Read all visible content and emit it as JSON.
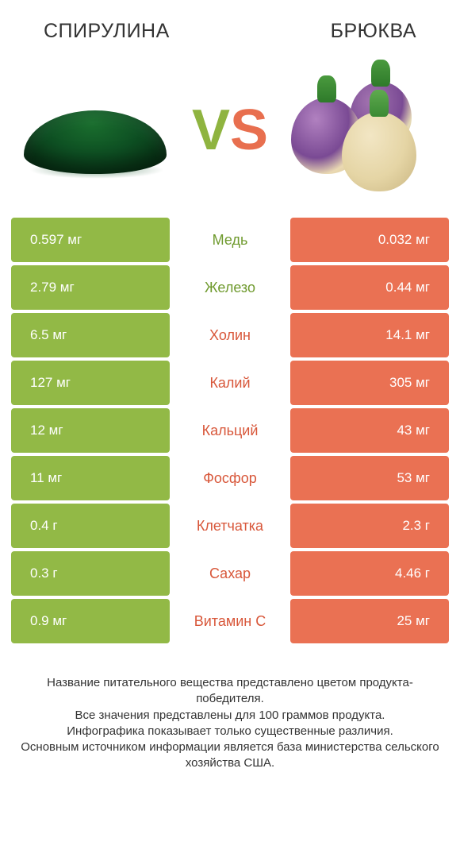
{
  "header": {
    "left_title": "СПИРУЛИНА",
    "right_title": "БРЮКВА"
  },
  "vs": {
    "v": "V",
    "s": "S"
  },
  "colors": {
    "green": "#92b946",
    "orange": "#ea7153",
    "green_text": "#6f9a2e",
    "orange_text": "#d8573a"
  },
  "table": {
    "rows": [
      {
        "left": "0.597 мг",
        "label": "Медь",
        "right": "0.032 мг",
        "winner": "left"
      },
      {
        "left": "2.79 мг",
        "label": "Железо",
        "right": "0.44 мг",
        "winner": "left"
      },
      {
        "left": "6.5 мг",
        "label": "Холин",
        "right": "14.1 мг",
        "winner": "right"
      },
      {
        "left": "127 мг",
        "label": "Калий",
        "right": "305 мг",
        "winner": "right"
      },
      {
        "left": "12 мг",
        "label": "Кальций",
        "right": "43 мг",
        "winner": "right"
      },
      {
        "left": "11 мг",
        "label": "Фосфор",
        "right": "53 мг",
        "winner": "right"
      },
      {
        "left": "0.4 г",
        "label": "Клетчатка",
        "right": "2.3 г",
        "winner": "right"
      },
      {
        "left": "0.3 г",
        "label": "Сахар",
        "right": "4.46 г",
        "winner": "right"
      },
      {
        "left": "0.9 мг",
        "label": "Витамин C",
        "right": "25 мг",
        "winner": "right"
      }
    ]
  },
  "footnote": {
    "line1": "Название питательного вещества представлено цветом продукта-победителя.",
    "line2": "Все значения представлены для 100 граммов продукта.",
    "line3": "Инфографика показывает только существенные различия.",
    "line4": "Основным источником информации является база министерства сельского хозяйства США."
  }
}
